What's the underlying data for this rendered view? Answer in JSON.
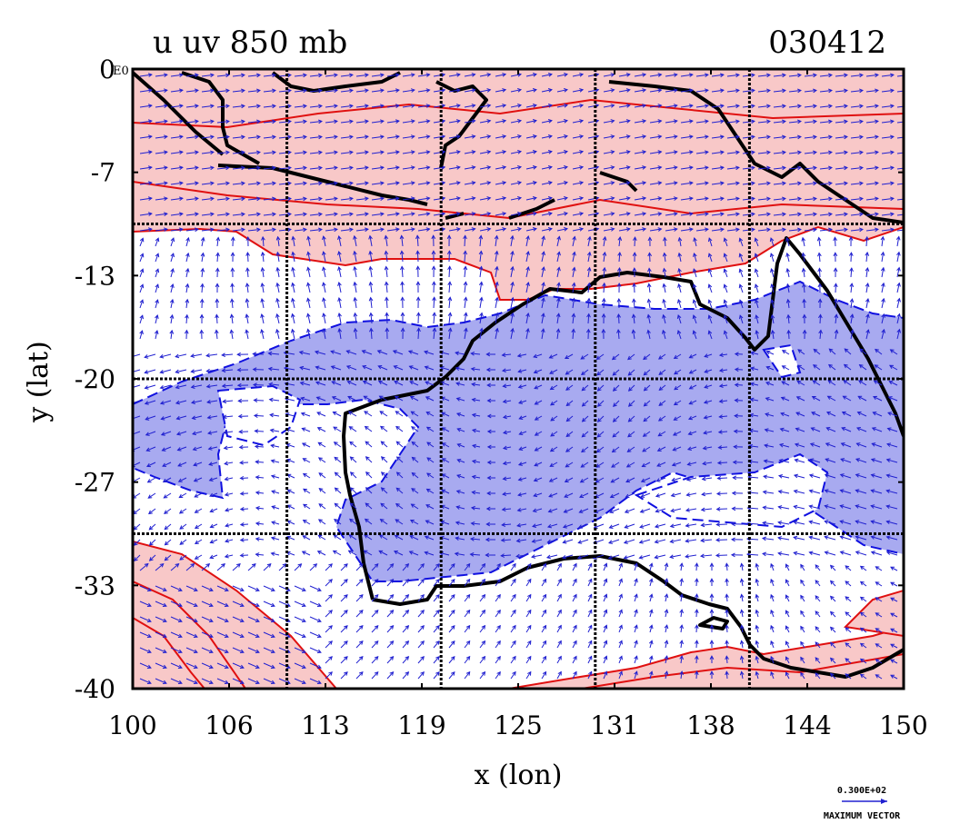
{
  "chart_data": {
    "type": "heatmap",
    "title_left": "u uv 850 mb",
    "title_right": "030412",
    "xlabel": "x (lon)",
    "ylabel": "y (lat)",
    "x_ticks": [
      "100",
      "106",
      "113",
      "119",
      "125",
      "131",
      "138",
      "144",
      "150"
    ],
    "y_ticks": [
      "0",
      "-7",
      "-13",
      "-20",
      "-27",
      "-33",
      "-40"
    ],
    "corner_label": "E0",
    "xlim": [
      100,
      150
    ],
    "ylim": [
      -40,
      0
    ],
    "grid_lon": [
      110,
      120,
      130,
      140
    ],
    "grid_lat": [
      -10,
      -20,
      -30
    ],
    "colors": {
      "positive_fill": "#f8c8c8",
      "positive_contour": "#e01010",
      "negative_fill": "#a8aaf0",
      "negative_contour": "#1010e0",
      "coastline": "#000000",
      "vectors": "#2020d0"
    },
    "reference_vector": {
      "value_label": "0.300E+02",
      "caption": "MAXIMUM VECTOR"
    }
  }
}
